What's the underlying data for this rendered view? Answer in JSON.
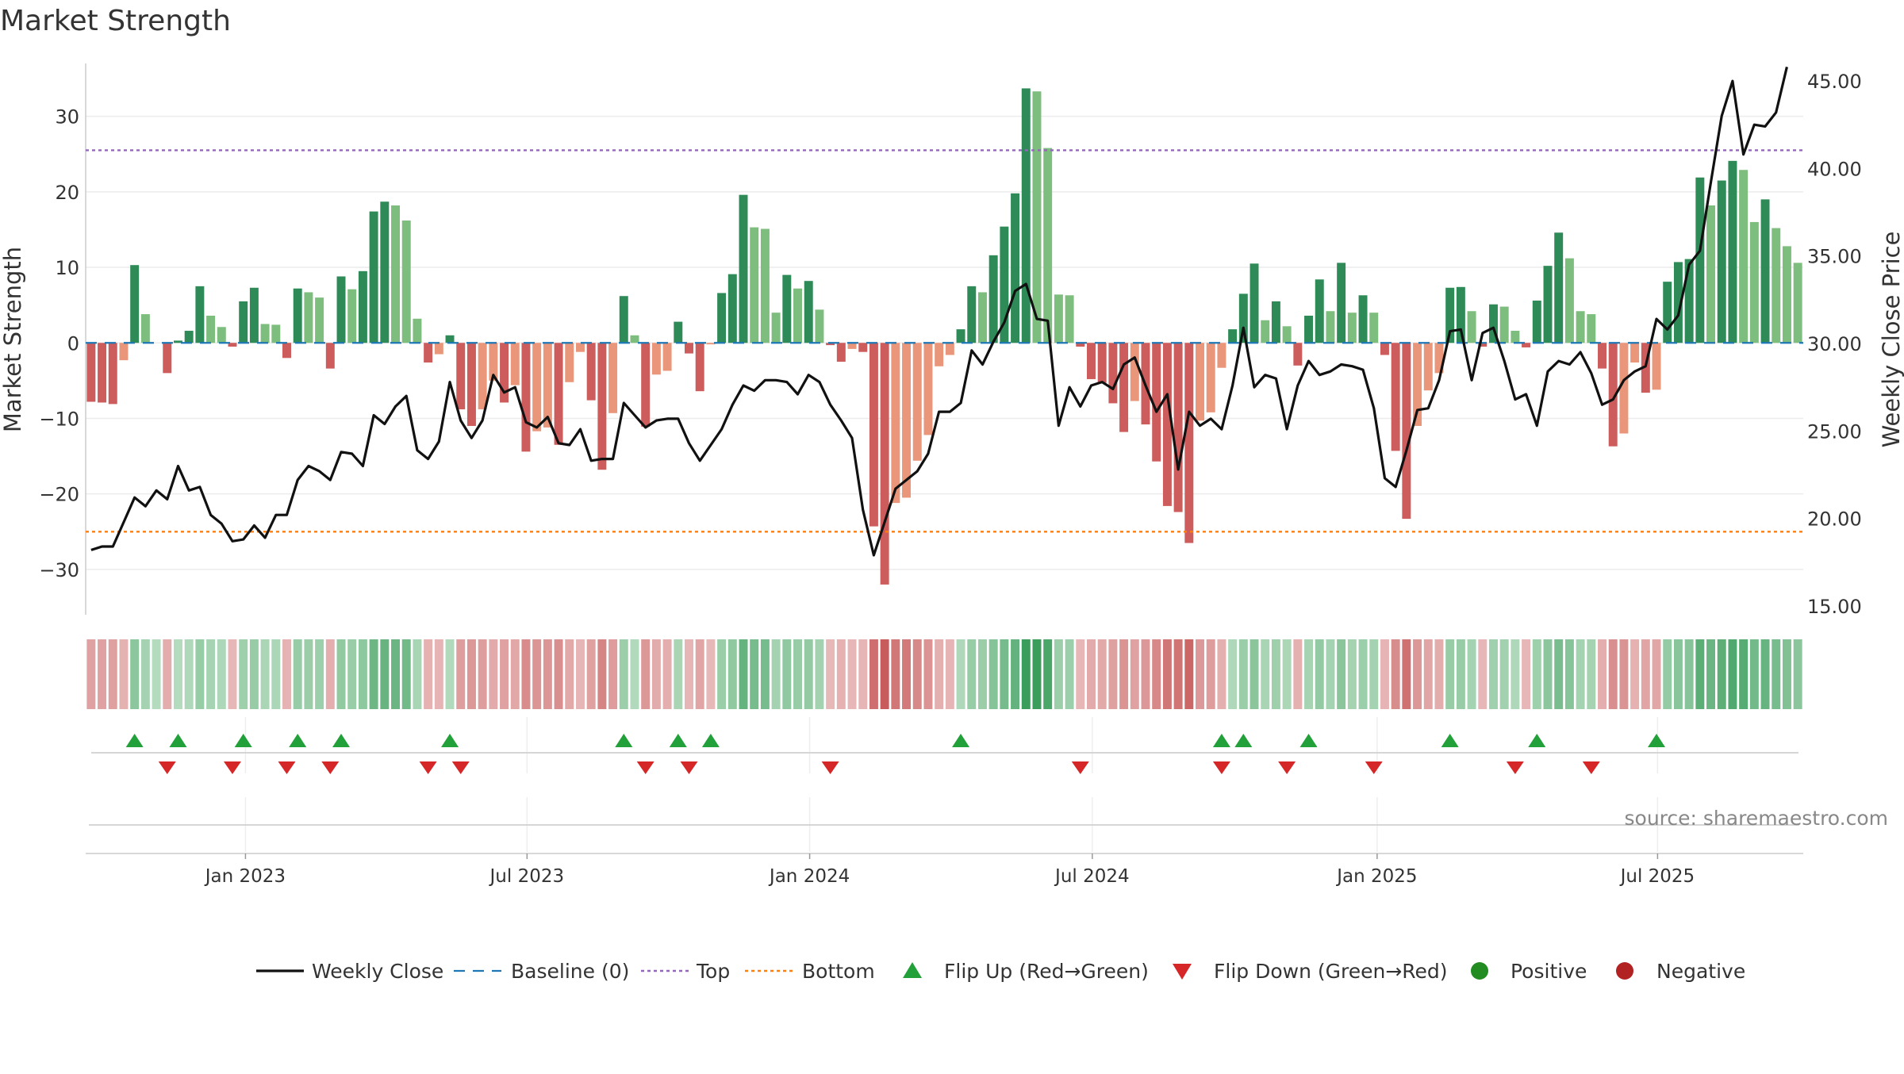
{
  "chart_data": {
    "type": "bar+line",
    "title": "Market Strength",
    "ylabel": "Market Strength",
    "y2label": "Weekly Close Price",
    "ylim": [
      -36,
      37
    ],
    "y2lim": [
      14.5,
      46.0
    ],
    "yticks": [
      -30,
      -20,
      -10,
      0,
      10,
      20,
      30
    ],
    "y2ticks": [
      "15.00",
      "20.00",
      "25.00",
      "30.00",
      "35.00",
      "40.00",
      "45.00"
    ],
    "top_line": 25.5,
    "bottom_line": -25,
    "x_labels": [
      "Jan 2023",
      "Jul 2023",
      "Jan 2024",
      "Jul 2024",
      "Jan 2025",
      "Jul 2025"
    ],
    "x_label_weeks": [
      14.7,
      40.6,
      66.6,
      92.6,
      118.8,
      144.6
    ],
    "strength": [
      -7.8,
      -7.9,
      -8.1,
      -2.3,
      10.3,
      3.8,
      0,
      -4.0,
      0.3,
      1.6,
      7.5,
      3.6,
      2.1,
      -0.5,
      5.5,
      7.3,
      2.5,
      2.4,
      -2.0,
      7.2,
      6.7,
      6.0,
      -3.4,
      8.8,
      7.1,
      9.5,
      17.4,
      18.7,
      18.2,
      16.2,
      3.2,
      -2.6,
      -1.5,
      1.0,
      -8.8,
      -11.0,
      -8.8,
      -5.0,
      -7.9,
      -5.6,
      -14.4,
      -11.7,
      -11.2,
      -13.5,
      -5.2,
      -1.2,
      -7.6,
      -16.8,
      -9.3,
      6.2,
      1.0,
      -11.1,
      -4.2,
      -3.7,
      2.8,
      -1.4,
      -6.4,
      -0.2,
      6.6,
      9.1,
      19.6,
      15.3,
      15.1,
      4.0,
      9.0,
      7.2,
      8.2,
      4.4,
      -0.3,
      -2.5,
      -0.8,
      -1.2,
      -24.3,
      -32.0,
      -21.2,
      -20.5,
      -15.6,
      -12.2,
      -3.1,
      -1.6,
      1.8,
      7.5,
      6.7,
      11.6,
      15.4,
      19.8,
      33.7,
      33.3,
      25.8,
      6.4,
      6.3,
      -0.5,
      -4.8,
      -5.3,
      -8.0,
      -11.8,
      -7.7,
      -10.8,
      -15.7,
      -21.6,
      -22.4,
      -26.5,
      -10.3,
      -9.2,
      -3.3,
      1.8,
      6.5,
      10.5,
      3.0,
      5.5,
      2.2,
      -3.0,
      3.6,
      8.4,
      4.2,
      10.6,
      4.0,
      6.3,
      4.0,
      -1.6,
      -14.3,
      -23.3,
      -11.0,
      -6.3,
      -4.0,
      7.3,
      7.4,
      4.2,
      -0.5,
      5.1,
      4.8,
      1.6,
      -0.6,
      5.6,
      10.2,
      14.6,
      11.2,
      4.2,
      3.8,
      -3.4,
      -13.7,
      -12.0,
      -2.6,
      -6.6,
      -6.2,
      8.1,
      10.7,
      11.1,
      21.9,
      18.2,
      21.5,
      24.1,
      22.9,
      16.0,
      19.0,
      15.2,
      12.8,
      10.6
    ],
    "weekly_close": [
      18.2,
      18.4,
      18.4,
      19.8,
      21.2,
      20.7,
      21.6,
      21.1,
      23.0,
      21.6,
      21.8,
      20.2,
      19.7,
      18.7,
      18.8,
      19.6,
      18.9,
      20.2,
      20.2,
      22.2,
      23.0,
      22.7,
      22.2,
      23.8,
      23.7,
      23.0,
      25.9,
      25.4,
      26.4,
      27.0,
      23.9,
      23.4,
      24.4,
      27.8,
      25.6,
      24.6,
      25.6,
      28.2,
      27.2,
      27.5,
      25.5,
      25.2,
      25.8,
      24.3,
      24.2,
      25.1,
      23.3,
      23.4,
      23.4,
      26.6,
      25.9,
      25.2,
      25.6,
      25.7,
      25.7,
      24.3,
      23.3,
      24.2,
      25.1,
      26.5,
      27.6,
      27.3,
      27.9,
      27.9,
      27.8,
      27.1,
      28.2,
      27.8,
      26.5,
      25.6,
      24.6,
      20.5,
      17.9,
      19.8,
      21.7,
      22.2,
      22.7,
      23.7,
      26.1,
      26.1,
      26.6,
      29.6,
      28.8,
      30.1,
      31.2,
      33.0,
      33.4,
      31.4,
      31.3,
      25.3,
      27.5,
      26.4,
      27.6,
      27.8,
      27.4,
      28.8,
      29.2,
      27.6,
      26.1,
      27.1,
      22.8,
      26.1,
      25.3,
      25.7,
      25.1,
      27.6,
      30.9,
      27.5,
      28.2,
      28.0,
      25.1,
      27.6,
      29.0,
      28.2,
      28.4,
      28.8,
      28.7,
      28.5,
      26.3,
      22.3,
      21.8,
      23.9,
      26.2,
      26.3,
      27.9,
      30.7,
      30.8,
      27.9,
      30.6,
      30.9,
      29.0,
      26.8,
      27.1,
      25.3,
      28.4,
      29.0,
      28.8,
      29.5,
      28.3,
      26.5,
      26.8,
      27.9,
      28.4,
      28.7,
      31.4,
      30.8,
      31.6,
      34.5,
      35.3,
      39.2,
      43.0,
      45.0,
      40.8,
      42.5,
      42.4,
      43.2,
      45.8
    ],
    "flip_up_weeks": [
      4,
      8,
      14,
      19,
      23,
      33,
      49,
      54,
      57,
      80,
      104,
      106,
      112,
      125,
      133,
      144
    ],
    "flip_down_weeks": [
      7,
      13,
      18,
      22,
      31,
      34,
      51,
      55,
      68,
      91,
      104,
      110,
      118,
      131,
      138
    ],
    "series": [
      "Weekly Close",
      "Baseline (0)",
      "Top",
      "Bottom",
      "Flip Up (Red→Green)",
      "Flip Down (Green→Red)",
      "Positive",
      "Negative"
    ]
  },
  "source_text": "source: sharemaestro.com",
  "colors": {
    "pos_dark": "#2e8b57",
    "pos_light": "#7dbd7d",
    "neg_dark": "#cd5c5c",
    "neg_light": "#e9967a",
    "top": "#9467bd",
    "bottom": "#ff7f0e",
    "baseline": "#1f77b4",
    "line": "#111111",
    "flip_up": "#22a03a",
    "flip_down": "#d62728",
    "legend_pos": "#228b22",
    "legend_neg": "#b22222"
  }
}
